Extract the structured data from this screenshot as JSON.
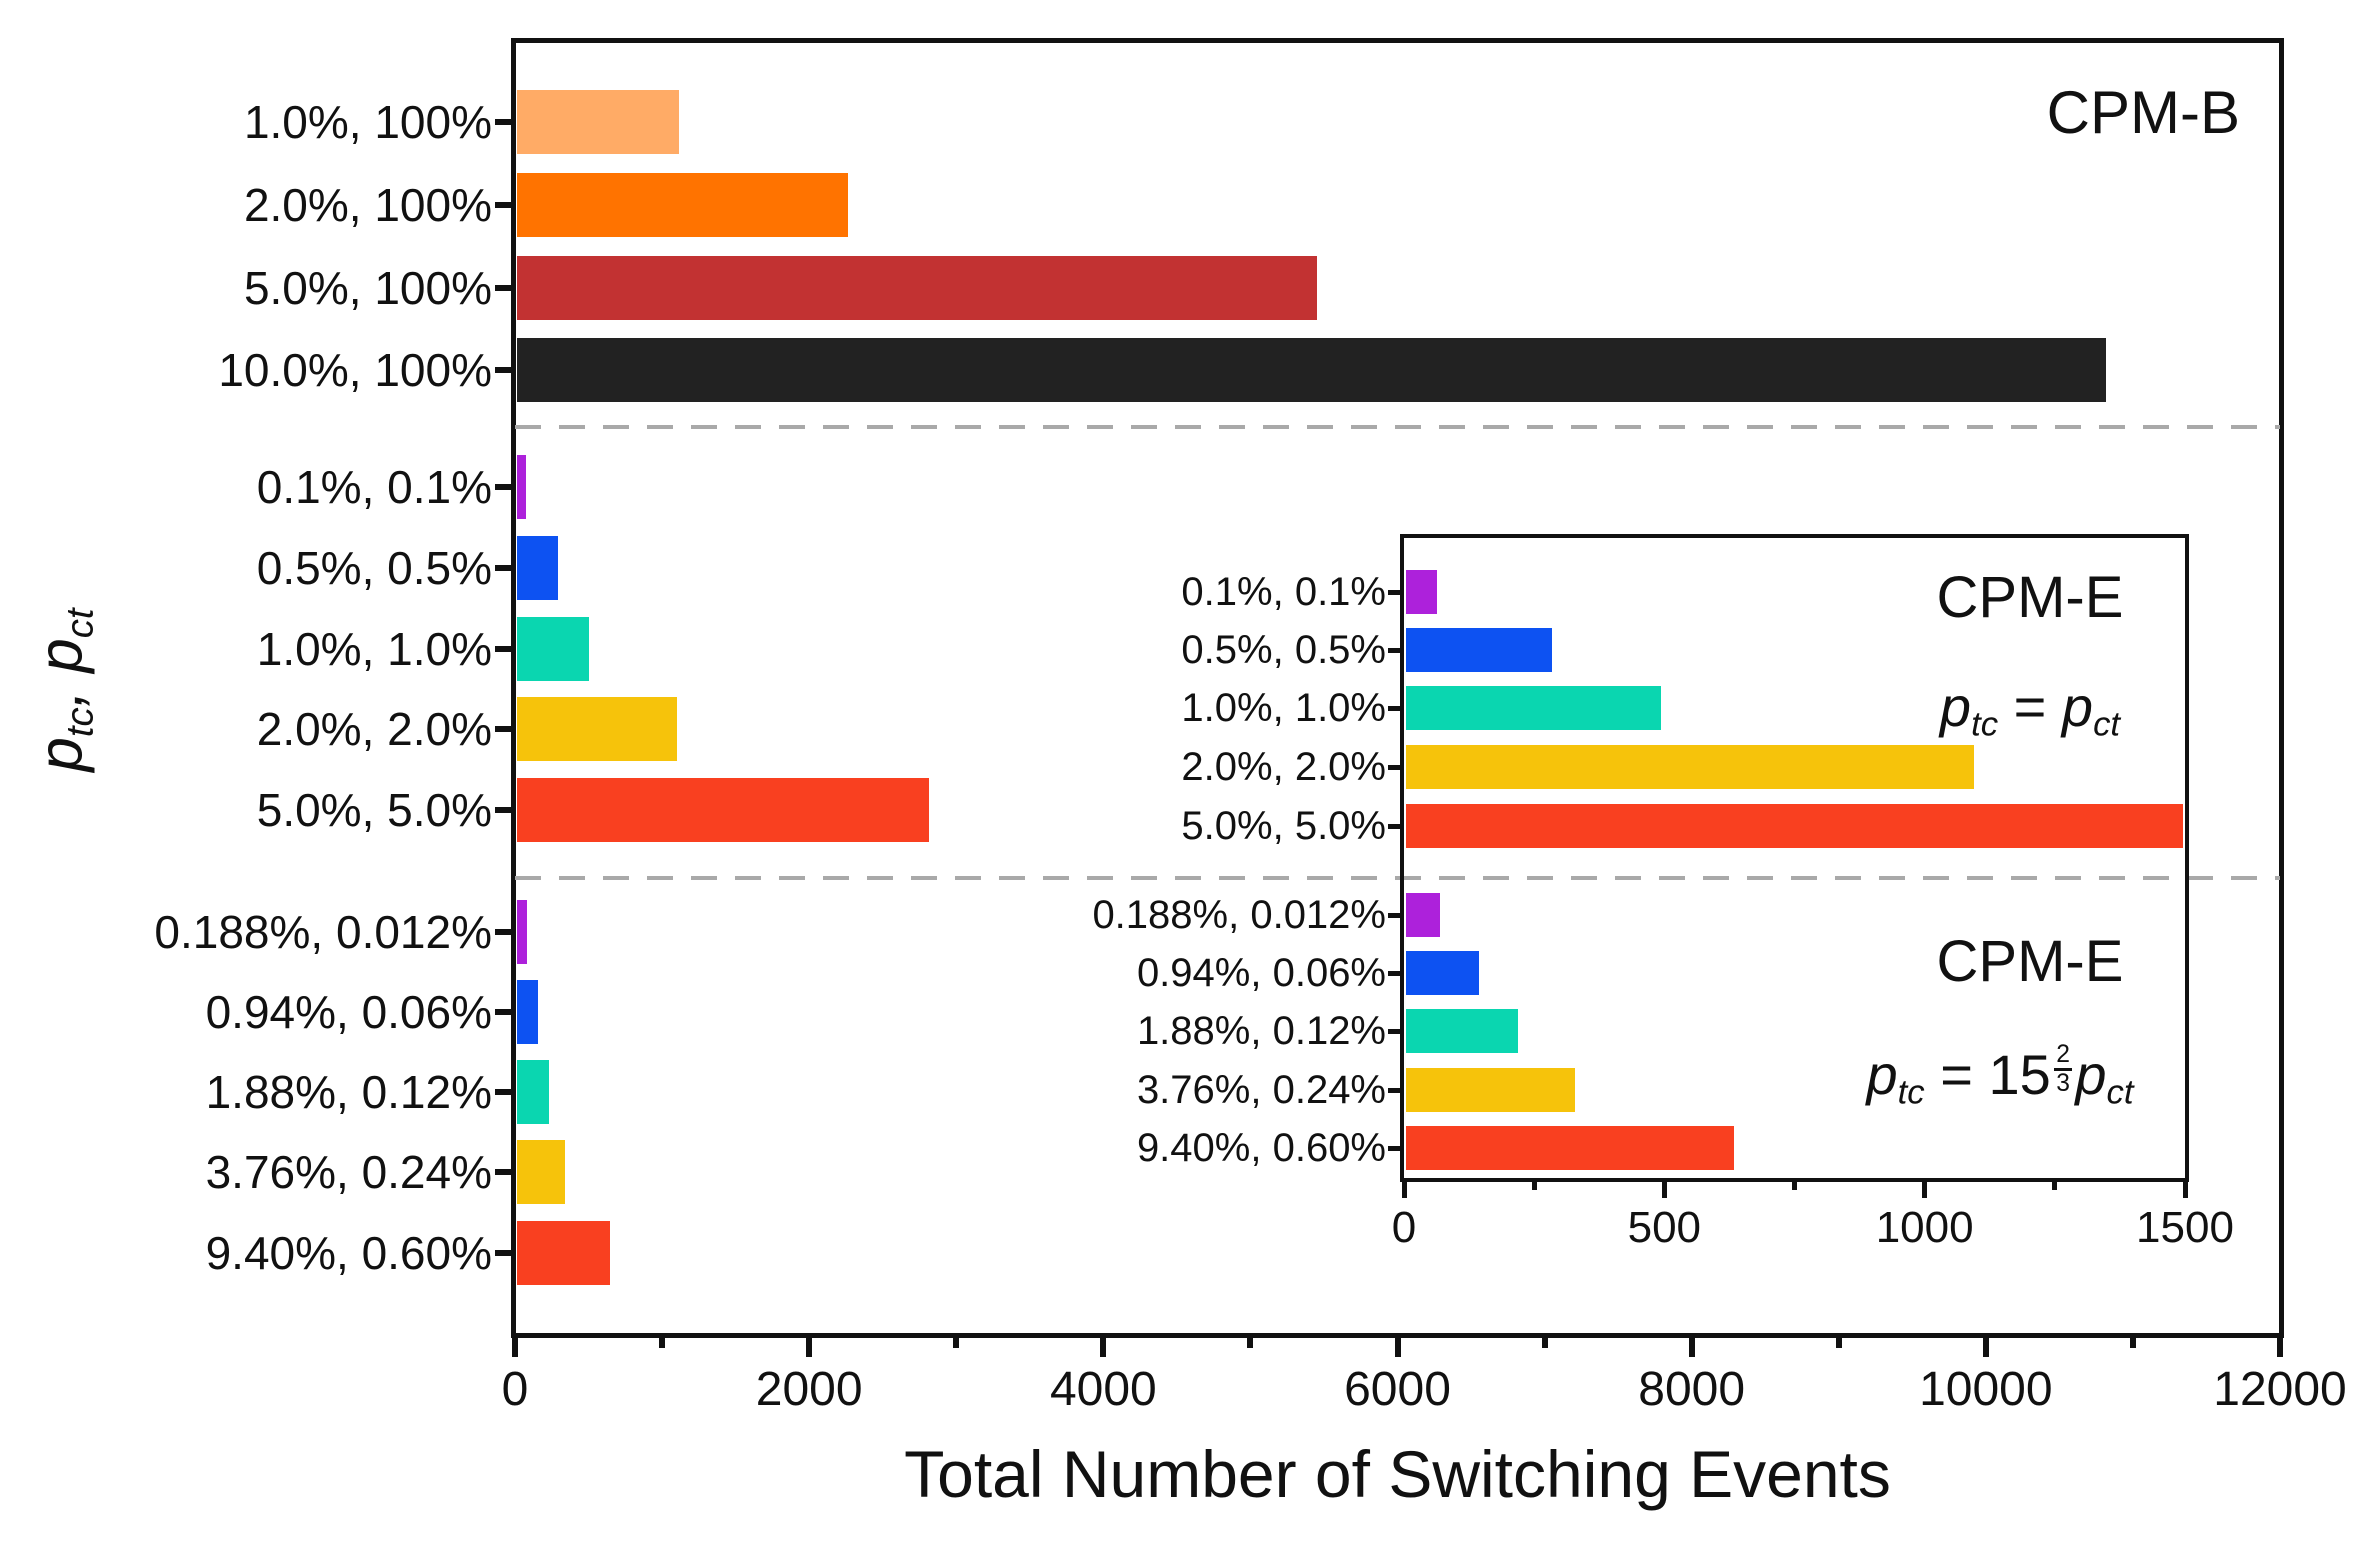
{
  "figure": {
    "xlabel": "Total Number of Switching Events",
    "ylabel": {
      "p1": "p",
      "s1": "tc",
      "sep": ", ",
      "p2": "p",
      "s2": "ct"
    },
    "separator_color": "#A9A9A9",
    "frame_color": "#111111",
    "text_color": "#111111"
  },
  "annotations": {
    "cpmb_label": "CPM-B",
    "inset_top_label": "CPM-E",
    "inset_bottom_label": "CPM-E",
    "math": {
      "p": "p",
      "tc": "tc",
      "ct": "ct",
      "eq": " = ",
      "coef": "15",
      "num": "2",
      "den": "3"
    }
  },
  "chart_data": {
    "type": "bar",
    "orientation": "horizontal",
    "title": "",
    "xlabel": "Total Number of Switching Events",
    "ylabel": "p_tc, p_ct",
    "xlim": [
      0,
      12000
    ],
    "xticks": [
      0,
      2000,
      4000,
      6000,
      8000,
      10000,
      12000
    ],
    "xticks_minor": [
      1000,
      3000,
      5000,
      7000,
      9000,
      11000
    ],
    "grid": false,
    "groups": [
      {
        "label": "CPM-B",
        "bars": [
          {
            "category": "1.0%, 100%",
            "value": 1100,
            "color": "#FFAB66"
          },
          {
            "category": "2.0%, 100%",
            "value": 2250,
            "color": "#FF7300"
          },
          {
            "category": "5.0%, 100%",
            "value": 5440,
            "color": "#C23232"
          },
          {
            "category": "10.0%, 100%",
            "value": 10800,
            "color": "#222222"
          }
        ]
      },
      {
        "label": "CPM-E",
        "condition": "ptc = pct",
        "bars": [
          {
            "category": "0.1%, 0.1%",
            "value": 60,
            "color": "#AD21DB"
          },
          {
            "category": "0.5%, 0.5%",
            "value": 280,
            "color": "#0D52F2"
          },
          {
            "category": "1.0%, 1.0%",
            "value": 490,
            "color": "#0AD6B0"
          },
          {
            "category": "2.0%, 2.0%",
            "value": 1090,
            "color": "#F6C30B"
          },
          {
            "category": "5.0%, 5.0%",
            "value": 2800,
            "color": "#F94020"
          }
        ]
      },
      {
        "label": "CPM-E",
        "condition": "ptc = 15 2/3 pct",
        "bars": [
          {
            "category": "0.188%, 0.012%",
            "value": 65,
            "color": "#AD21DB"
          },
          {
            "category": "0.94%, 0.06%",
            "value": 140,
            "color": "#0D52F2"
          },
          {
            "category": "1.88%, 0.12%",
            "value": 215,
            "color": "#0AD6B0"
          },
          {
            "category": "3.76%, 0.24%",
            "value": 325,
            "color": "#F6C30B"
          },
          {
            "category": "9.40%, 0.60%",
            "value": 630,
            "color": "#F94020"
          }
        ]
      }
    ],
    "inset": {
      "xlim": [
        0,
        1500
      ],
      "xticks": [
        0,
        500,
        1000,
        1500
      ],
      "xticks_minor": [
        250,
        750,
        1250
      ],
      "group_indices": [
        1,
        2
      ]
    }
  }
}
